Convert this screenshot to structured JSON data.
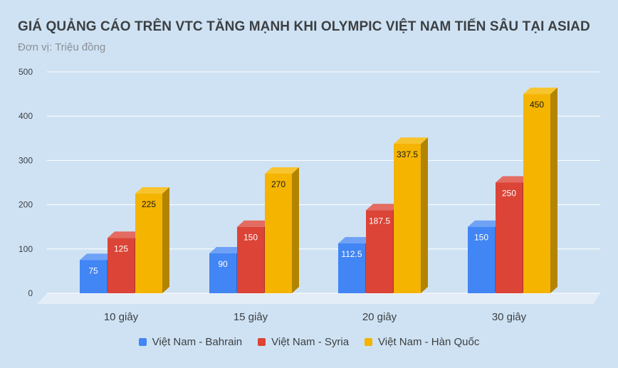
{
  "chart_data": {
    "type": "bar",
    "title": "GIÁ QUẢNG CÁO TRÊN VTC TĂNG MẠNH KHI OLYMPIC VIỆT NAM TIẾN SÂU TẠI ASIAD",
    "subtitle": "Đơn vị: Triệu đồng",
    "categories": [
      "10 giây",
      "15 giây",
      "20 giây",
      "30 giây"
    ],
    "series": [
      {
        "name": "Việt Nam - Bahrain",
        "values": [
          75,
          90,
          112.5,
          150
        ],
        "labels": [
          "75",
          "90",
          "112.5",
          "150"
        ],
        "color": "#4285f4",
        "side_color": "#2f66c4",
        "top_color": "#6fa2f7",
        "label_color": "#ffffff"
      },
      {
        "name": "Việt Nam - Syria",
        "values": [
          125,
          150,
          187.5,
          250
        ],
        "labels": [
          "125",
          "150",
          "187.5",
          "250"
        ],
        "color": "#db4437",
        "side_color": "#a83228",
        "top_color": "#e46c62",
        "label_color": "#ffffff"
      },
      {
        "name": "Việt Nam - Hàn Quốc",
        "values": [
          225,
          270,
          337.5,
          450
        ],
        "labels": [
          "225",
          "270",
          "337.5",
          "450"
        ],
        "color": "#f4b400",
        "side_color": "#b38400",
        "top_color": "#f8c42e",
        "label_color": "#1a1a1a"
      }
    ],
    "yticks": [
      "0",
      "100",
      "200",
      "300",
      "400",
      "500"
    ],
    "ylim": [
      0,
      500
    ],
    "grid": true,
    "three_d": true,
    "legend_position": "bottom"
  },
  "colors": {
    "background": "#cfe2f3",
    "grid": "#ffffff",
    "floor": "#e3edf7",
    "axis_text": "#3c4043"
  }
}
